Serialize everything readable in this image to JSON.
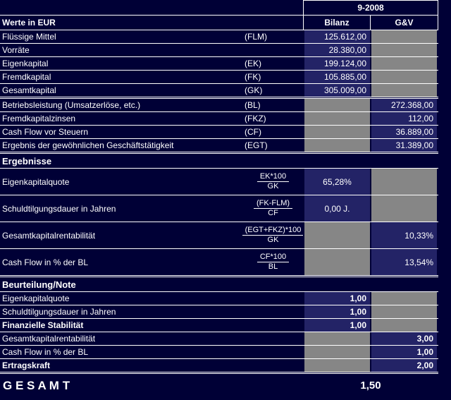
{
  "header": {
    "period": "9-2008",
    "title": "Werte in EUR",
    "col_bilanz": "Bilanz",
    "col_guv": "G&V"
  },
  "rows": {
    "balance": [
      {
        "label": "Flüssige Mittel",
        "abbr": "(FLM)",
        "bilanz": "125.612,00"
      },
      {
        "label": "Vorräte",
        "abbr": "",
        "bilanz": "28.380,00"
      },
      {
        "label": "Eigenkapital",
        "abbr": "(EK)",
        "bilanz": "199.124,00"
      },
      {
        "label": "Fremdkapital",
        "abbr": "(FK)",
        "bilanz": "105.885,00"
      },
      {
        "label": "Gesamtkapital",
        "abbr": "(GK)",
        "bilanz": "305.009,00"
      }
    ],
    "pnl": [
      {
        "label": "Betriebsleistung (Umsatzerlöse, etc.)",
        "abbr": "(BL)",
        "guv": "272.368,00"
      },
      {
        "label": "Fremdkapitalzinsen",
        "abbr": "(FKZ)",
        "guv": "112,00"
      },
      {
        "label": "Cash Flow vor Steuern",
        "abbr": "(CF)",
        "guv": "36.889,00"
      },
      {
        "label": "Ergebnis der gewöhnlichen Geschäftstätigkeit",
        "abbr": "(EGT)",
        "guv": "31.389,00"
      }
    ]
  },
  "sections": {
    "results": "Ergebnisse",
    "rating": "Beurteilung/Note"
  },
  "ratios": [
    {
      "label": "Eigenkapitalquote",
      "num": "EK*100",
      "den": "GK",
      "bilanz": "65,28%",
      "guv": ""
    },
    {
      "label": "Schuldtilgungsdauer in Jahren",
      "num": "(FK-FLM)",
      "den": "CF",
      "bilanz": "0,00 J.",
      "guv": ""
    },
    {
      "label": "Gesamtkapitalrentabilität",
      "num": "(EGT+FKZ)*100",
      "den": "GK",
      "bilanz": "",
      "guv": "10,33%"
    },
    {
      "label": "Cash Flow in % der BL",
      "num": "CF*100",
      "den": "BL",
      "bilanz": "",
      "guv": "13,54%"
    }
  ],
  "ratings": [
    {
      "label": "Eigenkapitalquote",
      "bilanz": "1,00",
      "guv": ""
    },
    {
      "label": "Schuldtilgungsdauer in Jahren",
      "bilanz": "1,00",
      "guv": ""
    },
    {
      "label": "Finanzielle Stabilität",
      "bilanz": "1,00",
      "guv": ""
    },
    {
      "label": "Gesamtkapitalrentabilität",
      "bilanz": "",
      "guv": "3,00"
    },
    {
      "label": "Cash Flow in % der BL",
      "bilanz": "",
      "guv": "1,00"
    },
    {
      "label": "Ertragskraft",
      "bilanz": "",
      "guv": "2,00"
    }
  ],
  "total": {
    "label": "G E S A M T",
    "value": "1,50"
  },
  "colors": {
    "background": "#000036",
    "value_cell": "#232366",
    "disabled_cell": "#868686",
    "grid_line": "#ffffff",
    "text": "#ffffff"
  }
}
